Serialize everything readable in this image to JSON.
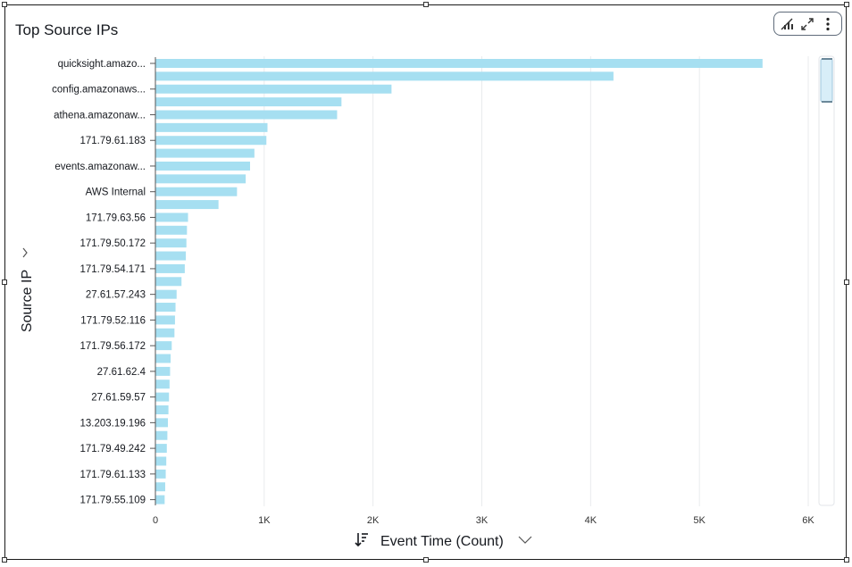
{
  "visual": {
    "title": "Top Source IPs",
    "toolbar": [
      "visual-insights-icon",
      "expand-icon",
      "more-options-icon"
    ]
  },
  "chart_data": {
    "type": "bar",
    "orientation": "horizontal",
    "title": "Top Source IPs",
    "ylabel": "Source IP",
    "xlabel": "Event Time (Count)",
    "xlim": [
      0,
      6000
    ],
    "xticks": [
      0,
      1000,
      2000,
      3000,
      4000,
      5000,
      6000
    ],
    "xtick_labels": [
      "0",
      "1K",
      "2K",
      "3K",
      "4K",
      "5K",
      "6K"
    ],
    "grid": true,
    "bar_color": "#a6dff1",
    "categories": [
      "quicksight.amazo...",
      "",
      "config.amazonaws...",
      "",
      "athena.amazonaw...",
      "",
      "171.79.61.183",
      "",
      "events.amazonaw...",
      "",
      "AWS Internal",
      "",
      "171.79.63.56",
      "",
      "171.79.50.172",
      "",
      "171.79.54.171",
      "",
      "27.61.57.243",
      "",
      "171.79.52.116",
      "",
      "171.79.56.172",
      "",
      "27.61.62.4",
      "",
      "27.61.59.57",
      "",
      "13.203.19.196",
      "",
      "171.79.49.242",
      "",
      "171.79.61.133",
      "",
      "171.79.55.109"
    ],
    "values": [
      5580,
      4210,
      2170,
      1710,
      1670,
      1030,
      1020,
      910,
      870,
      830,
      750,
      580,
      300,
      290,
      285,
      280,
      270,
      240,
      195,
      185,
      180,
      175,
      150,
      140,
      135,
      130,
      125,
      120,
      115,
      110,
      105,
      100,
      95,
      90,
      85
    ]
  }
}
